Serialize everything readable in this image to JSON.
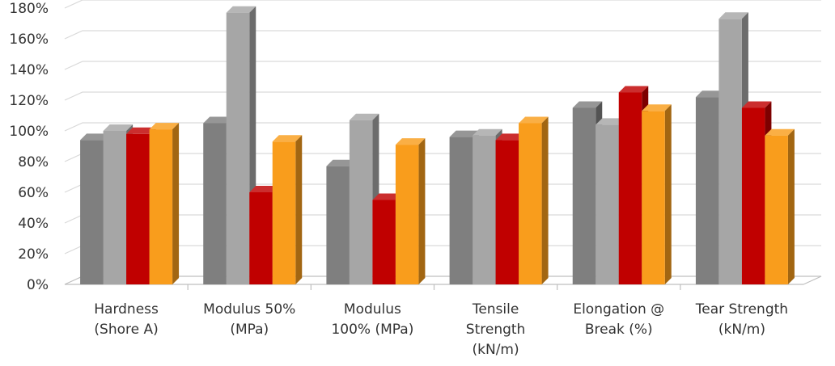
{
  "chart_data": {
    "type": "bar",
    "title": "",
    "xlabel": "",
    "ylabel": "",
    "categories": [
      [
        "Hardness",
        "(Shore A)"
      ],
      [
        "Modulus 50%",
        "(MPa)"
      ],
      [
        "Modulus",
        "100% (MPa)"
      ],
      [
        "Tensile",
        "Strength",
        "(kN/m)"
      ],
      [
        "Elongation @",
        "Break (%)"
      ],
      [
        "Tear Strength",
        "(kN/m)"
      ]
    ],
    "y_ticks": [
      "0%",
      "20%",
      "40%",
      "60%",
      "80%",
      "100%",
      "120%",
      "140%",
      "160%",
      "180%"
    ],
    "ylim": [
      0,
      180
    ],
    "grid": true,
    "legend": "none",
    "series": [
      {
        "color": "#7f7f7f",
        "values": [
          94,
          105,
          77,
          96,
          115,
          122
        ]
      },
      {
        "color": "#a6a6a6",
        "values": [
          100,
          177,
          107,
          97,
          104,
          173
        ]
      },
      {
        "color": "#c00000",
        "values": [
          98,
          60,
          55,
          94,
          125,
          115
        ]
      },
      {
        "color": "#f99d1c",
        "values": [
          101,
          93,
          91,
          105,
          113,
          97
        ]
      }
    ]
  }
}
